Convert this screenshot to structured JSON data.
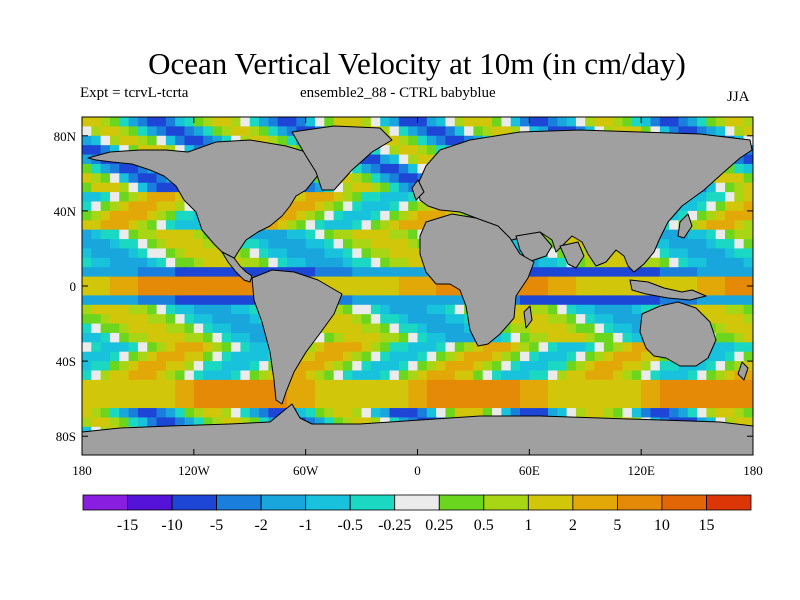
{
  "title": "Ocean Vertical Velocity at 10m (in cm/day)",
  "subtitle_left": "Expt = tcrvL-tcrta",
  "subtitle_center": "ensemble2_88 - CTRL babyblue",
  "season": "JJA",
  "map": {
    "projection": "equirectangular",
    "lon_range": [
      -180,
      180
    ],
    "lat_range": [
      -90,
      90
    ],
    "land_color": "#a0a0a0",
    "coastline_color": "#000000",
    "x_ticks": [
      "180",
      "120W",
      "60W",
      "0",
      "60E",
      "120E",
      "180"
    ],
    "y_ticks": [
      "80N",
      "40N",
      "0",
      "40S",
      "80S"
    ]
  },
  "colorbar": {
    "boundaries": [
      "-15",
      "-10",
      "-5",
      "-2",
      "-1",
      "-0.5",
      "-0.25",
      "0.25",
      "0.5",
      "1",
      "2",
      "5",
      "10",
      "15"
    ],
    "colors": [
      "#8a1ee0",
      "#5512d8",
      "#1e46d6",
      "#1a7fdc",
      "#18a6dc",
      "#19c2dc",
      "#1ad8c2",
      "#ebebeb",
      "#6ad61e",
      "#a8d614",
      "#d2c60a",
      "#e2a808",
      "#e48a06",
      "#e26606",
      "#dc3606"
    ]
  }
}
